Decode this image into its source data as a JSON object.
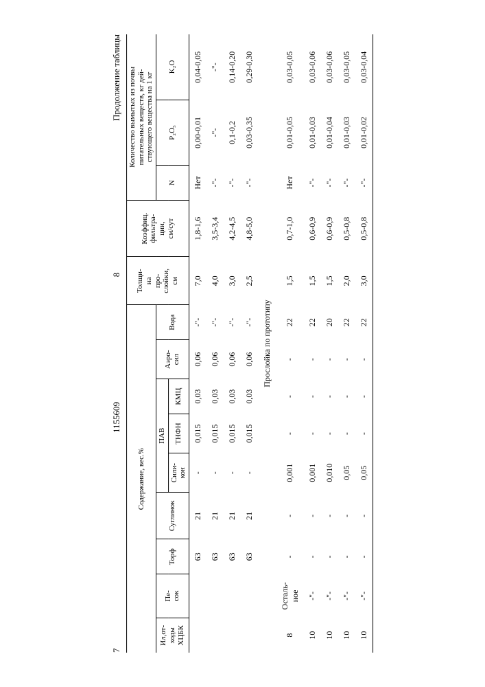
{
  "top": {
    "pageLeft": "7",
    "patent": "1155609",
    "pageRight": "8",
    "continuation": "Продолжение таблицы"
  },
  "headers": {
    "content": "Содержание, вес.%",
    "il": "Ил,от-\nходы\nХЦБК",
    "pesok": "Пе-\nсок",
    "torf": "Торф",
    "suglinok": "Суглинок",
    "pav": "ПАВ",
    "silikon": "Сили-\nкон",
    "tnfn": "ТНФН",
    "kmc": "КМЦ",
    "aerosil": "Аэро-\nсил",
    "voda": "Вода",
    "thickness": "Толщи-\nна\nпро-\nслойки,\nсм",
    "coef": "Коэффиц.\nфильтра-\nции,\nсм/сут",
    "washed": "Количество вымытых из почвы\nпитательных веществ, кг дей-\nствующего вещества на 1 кг",
    "n": "N",
    "p2o5": "P₂O₅",
    "k2o": "K₂O"
  },
  "sectionA": [
    {
      "il": "",
      "pesok": "",
      "torf": "63",
      "sug": "21",
      "sil": "-",
      "tnfn": "0,015",
      "kmc": "0,03",
      "aero": "0,06",
      "voda": "-\"-",
      "thk": "7,0",
      "coef": "1,8-1,6",
      "n": "Нет",
      "p": "0,00-0,01",
      "k": "0,04-0,05"
    },
    {
      "il": "",
      "pesok": "",
      "torf": "63",
      "sug": "21",
      "sil": "-",
      "tnfn": "0,015",
      "kmc": "0,03",
      "aero": "0,06",
      "voda": "-\"-",
      "thk": "4,0",
      "coef": "3,5-3,4",
      "n": "-\"-",
      "p": "-\"-",
      "k": "-\"-"
    },
    {
      "il": "",
      "pesok": "",
      "torf": "63",
      "sug": "21",
      "sil": "-",
      "tnfn": "0,015",
      "kmc": "0,03",
      "aero": "0,06",
      "voda": "-\"-",
      "thk": "3,0",
      "coef": "4,2-4,5",
      "n": "-\"-",
      "p": "0,1-0,2",
      "k": "0,14-0,20"
    },
    {
      "il": "",
      "pesok": "",
      "torf": "63",
      "sug": "21",
      "sil": "-",
      "tnfn": "0,015",
      "kmc": "0,03",
      "aero": "0,06",
      "voda": "-\"-",
      "thk": "2,5",
      "coef": "4,8-5,0",
      "n": "-\"-",
      "p": "0,03-0,35",
      "k": "0,29-0,30"
    }
  ],
  "sectionLabel": "Прослойка по прототипу",
  "sectionB": [
    {
      "il": "8",
      "pesok": "Осталь-\nное",
      "torf": "-",
      "sug": "-",
      "sil": "0,001",
      "tnfn": "-",
      "kmc": "-",
      "aero": "-",
      "voda": "22",
      "thk": "1,5",
      "coef": "0,7-1,0",
      "n": "Нет",
      "p": "0,01-0,05",
      "k": "0,03-0,05"
    },
    {
      "il": "10",
      "pesok": "-\"-",
      "torf": "-",
      "sug": "-",
      "sil": "0,001",
      "tnfn": "-",
      "kmc": "-",
      "aero": "-",
      "voda": "22",
      "thk": "1,5",
      "coef": "0,6-0,9",
      "n": "-\"-",
      "p": "0,01-0,03",
      "k": "0,03-0,06"
    },
    {
      "il": "10",
      "pesok": "-\"-",
      "torf": "-",
      "sug": "-",
      "sil": "0,010",
      "tnfn": "-",
      "kmc": "-",
      "aero": "-",
      "voda": "20",
      "thk": "1,5",
      "coef": "0,6-0,9",
      "n": "-\"-",
      "p": "0,01-0,04",
      "k": "0,03-0,06"
    },
    {
      "il": "10",
      "pesok": "-\"-",
      "torf": "-",
      "sug": "-",
      "sil": "0,05",
      "tnfn": "-",
      "kmc": "-",
      "aero": "-",
      "voda": "22",
      "thk": "2,0",
      "coef": "0,5-0,8",
      "n": "-\"-",
      "p": "0,01-0,03",
      "k": "0,03-0,05"
    },
    {
      "il": "10",
      "pesok": "-\"-",
      "torf": "-",
      "sug": "-",
      "sil": "0,05",
      "tnfn": "-",
      "kmc": "-",
      "aero": "-",
      "voda": "22",
      "thk": "3,0",
      "coef": "0,5-0,8",
      "n": "-\"-",
      "p": "0,01-0,02",
      "k": "0,03-0,04"
    }
  ]
}
